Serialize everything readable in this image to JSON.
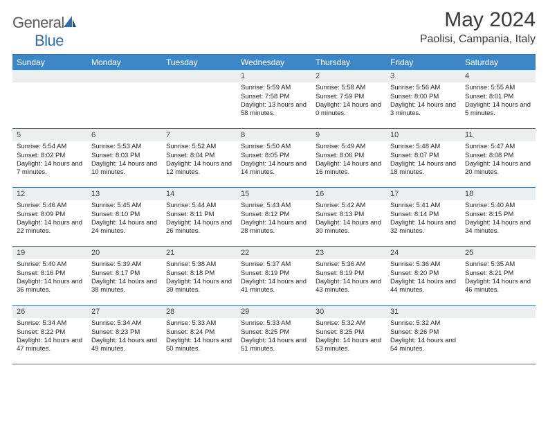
{
  "logo": {
    "text_part1": "General",
    "text_part2": "Blue"
  },
  "header": {
    "month_title": "May 2024",
    "location": "Paolisi, Campania, Italy"
  },
  "colors": {
    "accent": "#3d87c7",
    "rule": "#2f6fb0",
    "daynum_bg": "#eceef0",
    "text": "#222222",
    "background": "#ffffff"
  },
  "day_names": [
    "Sunday",
    "Monday",
    "Tuesday",
    "Wednesday",
    "Thursday",
    "Friday",
    "Saturday"
  ],
  "weeks": [
    [
      {
        "n": "",
        "sr": "",
        "ss": "",
        "dl": ""
      },
      {
        "n": "",
        "sr": "",
        "ss": "",
        "dl": ""
      },
      {
        "n": "",
        "sr": "",
        "ss": "",
        "dl": ""
      },
      {
        "n": "1",
        "sr": "Sunrise: 5:59 AM",
        "ss": "Sunset: 7:58 PM",
        "dl": "Daylight: 13 hours and 58 minutes."
      },
      {
        "n": "2",
        "sr": "Sunrise: 5:58 AM",
        "ss": "Sunset: 7:59 PM",
        "dl": "Daylight: 14 hours and 0 minutes."
      },
      {
        "n": "3",
        "sr": "Sunrise: 5:56 AM",
        "ss": "Sunset: 8:00 PM",
        "dl": "Daylight: 14 hours and 3 minutes."
      },
      {
        "n": "4",
        "sr": "Sunrise: 5:55 AM",
        "ss": "Sunset: 8:01 PM",
        "dl": "Daylight: 14 hours and 5 minutes."
      }
    ],
    [
      {
        "n": "5",
        "sr": "Sunrise: 5:54 AM",
        "ss": "Sunset: 8:02 PM",
        "dl": "Daylight: 14 hours and 7 minutes."
      },
      {
        "n": "6",
        "sr": "Sunrise: 5:53 AM",
        "ss": "Sunset: 8:03 PM",
        "dl": "Daylight: 14 hours and 10 minutes."
      },
      {
        "n": "7",
        "sr": "Sunrise: 5:52 AM",
        "ss": "Sunset: 8:04 PM",
        "dl": "Daylight: 14 hours and 12 minutes."
      },
      {
        "n": "8",
        "sr": "Sunrise: 5:50 AM",
        "ss": "Sunset: 8:05 PM",
        "dl": "Daylight: 14 hours and 14 minutes."
      },
      {
        "n": "9",
        "sr": "Sunrise: 5:49 AM",
        "ss": "Sunset: 8:06 PM",
        "dl": "Daylight: 14 hours and 16 minutes."
      },
      {
        "n": "10",
        "sr": "Sunrise: 5:48 AM",
        "ss": "Sunset: 8:07 PM",
        "dl": "Daylight: 14 hours and 18 minutes."
      },
      {
        "n": "11",
        "sr": "Sunrise: 5:47 AM",
        "ss": "Sunset: 8:08 PM",
        "dl": "Daylight: 14 hours and 20 minutes."
      }
    ],
    [
      {
        "n": "12",
        "sr": "Sunrise: 5:46 AM",
        "ss": "Sunset: 8:09 PM",
        "dl": "Daylight: 14 hours and 22 minutes."
      },
      {
        "n": "13",
        "sr": "Sunrise: 5:45 AM",
        "ss": "Sunset: 8:10 PM",
        "dl": "Daylight: 14 hours and 24 minutes."
      },
      {
        "n": "14",
        "sr": "Sunrise: 5:44 AM",
        "ss": "Sunset: 8:11 PM",
        "dl": "Daylight: 14 hours and 26 minutes."
      },
      {
        "n": "15",
        "sr": "Sunrise: 5:43 AM",
        "ss": "Sunset: 8:12 PM",
        "dl": "Daylight: 14 hours and 28 minutes."
      },
      {
        "n": "16",
        "sr": "Sunrise: 5:42 AM",
        "ss": "Sunset: 8:13 PM",
        "dl": "Daylight: 14 hours and 30 minutes."
      },
      {
        "n": "17",
        "sr": "Sunrise: 5:41 AM",
        "ss": "Sunset: 8:14 PM",
        "dl": "Daylight: 14 hours and 32 minutes."
      },
      {
        "n": "18",
        "sr": "Sunrise: 5:40 AM",
        "ss": "Sunset: 8:15 PM",
        "dl": "Daylight: 14 hours and 34 minutes."
      }
    ],
    [
      {
        "n": "19",
        "sr": "Sunrise: 5:40 AM",
        "ss": "Sunset: 8:16 PM",
        "dl": "Daylight: 14 hours and 36 minutes."
      },
      {
        "n": "20",
        "sr": "Sunrise: 5:39 AM",
        "ss": "Sunset: 8:17 PM",
        "dl": "Daylight: 14 hours and 38 minutes."
      },
      {
        "n": "21",
        "sr": "Sunrise: 5:38 AM",
        "ss": "Sunset: 8:18 PM",
        "dl": "Daylight: 14 hours and 39 minutes."
      },
      {
        "n": "22",
        "sr": "Sunrise: 5:37 AM",
        "ss": "Sunset: 8:19 PM",
        "dl": "Daylight: 14 hours and 41 minutes."
      },
      {
        "n": "23",
        "sr": "Sunrise: 5:36 AM",
        "ss": "Sunset: 8:19 PM",
        "dl": "Daylight: 14 hours and 43 minutes."
      },
      {
        "n": "24",
        "sr": "Sunrise: 5:36 AM",
        "ss": "Sunset: 8:20 PM",
        "dl": "Daylight: 14 hours and 44 minutes."
      },
      {
        "n": "25",
        "sr": "Sunrise: 5:35 AM",
        "ss": "Sunset: 8:21 PM",
        "dl": "Daylight: 14 hours and 46 minutes."
      }
    ],
    [
      {
        "n": "26",
        "sr": "Sunrise: 5:34 AM",
        "ss": "Sunset: 8:22 PM",
        "dl": "Daylight: 14 hours and 47 minutes."
      },
      {
        "n": "27",
        "sr": "Sunrise: 5:34 AM",
        "ss": "Sunset: 8:23 PM",
        "dl": "Daylight: 14 hours and 49 minutes."
      },
      {
        "n": "28",
        "sr": "Sunrise: 5:33 AM",
        "ss": "Sunset: 8:24 PM",
        "dl": "Daylight: 14 hours and 50 minutes."
      },
      {
        "n": "29",
        "sr": "Sunrise: 5:33 AM",
        "ss": "Sunset: 8:25 PM",
        "dl": "Daylight: 14 hours and 51 minutes."
      },
      {
        "n": "30",
        "sr": "Sunrise: 5:32 AM",
        "ss": "Sunset: 8:25 PM",
        "dl": "Daylight: 14 hours and 53 minutes."
      },
      {
        "n": "31",
        "sr": "Sunrise: 5:32 AM",
        "ss": "Sunset: 8:26 PM",
        "dl": "Daylight: 14 hours and 54 minutes."
      },
      {
        "n": "",
        "sr": "",
        "ss": "",
        "dl": ""
      }
    ]
  ]
}
